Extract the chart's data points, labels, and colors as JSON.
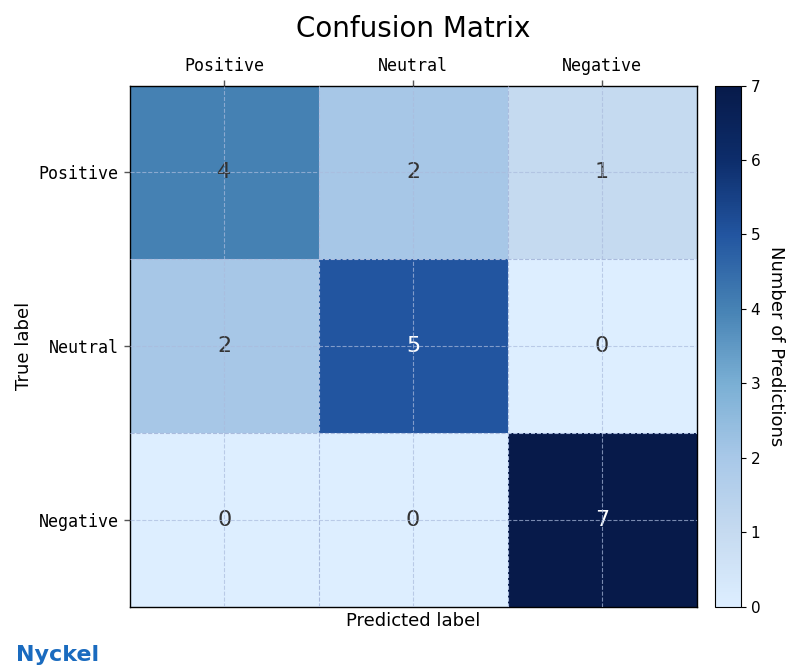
{
  "title": "Confusion Matrix",
  "matrix": [
    [
      4,
      2,
      1
    ],
    [
      2,
      5,
      0
    ],
    [
      0,
      0,
      7
    ]
  ],
  "classes": [
    "Positive",
    "Neutral",
    "Negative"
  ],
  "xlabel": "Predicted label",
  "ylabel": "True label",
  "colorbar_label": "Number of Predictions",
  "vmin": 0,
  "vmax": 7,
  "cmap_colors": [
    "#ddeeff",
    "#c5daf0",
    "#a8c8e8",
    "#7aafd4",
    "#4682b4",
    "#2255a0",
    "#0d2d6b",
    "#071a4a"
  ],
  "text_color_light": "white",
  "text_color_dark": "#333333",
  "grid_color": "#aabbdd",
  "grid_style": "--",
  "title_fontsize": 20,
  "label_fontsize": 13,
  "tick_fontsize": 12,
  "cell_text_fontsize": 16,
  "colorbar_tick_fontsize": 11,
  "nyckel_color": "#1a6bbf",
  "nyckel_fontsize": 16,
  "background_color": "#ffffff",
  "figsize": [
    8.0,
    6.72
  ],
  "dpi": 100,
  "white_text_threshold": 4.5
}
